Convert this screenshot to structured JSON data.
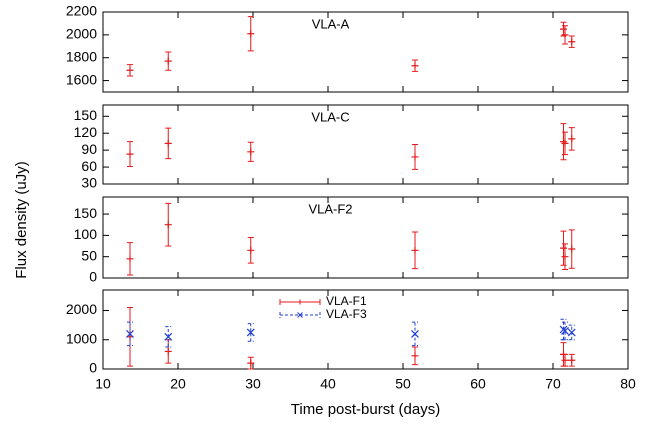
{
  "chart_data": [
    {
      "type": "errorbar",
      "annotation": "VLA-A",
      "x": [
        13.6,
        18.7,
        29.7,
        51.6,
        71.4,
        71.6,
        72.5
      ],
      "series": [
        {
          "color": "#e41a1c",
          "marker": "+",
          "values": [
            1690,
            1770,
            2010,
            1730,
            2050,
            2000,
            1940
          ],
          "errors": [
            50,
            80,
            150,
            50,
            60,
            80,
            50
          ]
        }
      ],
      "ylim": [
        1500,
        2200
      ],
      "yticks": [
        1600,
        1800,
        2000,
        2200
      ]
    },
    {
      "type": "errorbar",
      "annotation": "VLA-C",
      "x": [
        13.6,
        18.7,
        29.7,
        51.6,
        71.4,
        71.6,
        72.5
      ],
      "series": [
        {
          "color": "#e41a1c",
          "marker": "+",
          "values": [
            83,
            102,
            87,
            78,
            105,
            102,
            110
          ],
          "errors": [
            22,
            27,
            17,
            22,
            32,
            20,
            20
          ]
        }
      ],
      "ylim": [
        30,
        170
      ],
      "yticks": [
        30,
        60,
        90,
        120,
        150
      ]
    },
    {
      "type": "errorbar",
      "annotation": "VLA-F2",
      "x": [
        13.6,
        18.7,
        29.7,
        51.6,
        71.4,
        71.6,
        72.5
      ],
      "series": [
        {
          "color": "#e41a1c",
          "marker": "+",
          "values": [
            45,
            125,
            65,
            65,
            70,
            50,
            68
          ],
          "errors": [
            38,
            50,
            30,
            43,
            40,
            30,
            45
          ]
        }
      ],
      "ylim": [
        0,
        190
      ],
      "yticks": [
        0,
        50,
        100,
        150
      ]
    },
    {
      "type": "errorbar",
      "x_label": "Time post-burst (days)",
      "y_label": "Flux density (uJy)",
      "x": [
        13.6,
        18.7,
        29.7,
        51.6,
        71.4,
        71.6,
        72.5
      ],
      "series": [
        {
          "name": "VLA-F1",
          "color": "#e41a1c",
          "marker": "+",
          "values": [
            1100,
            600,
            200,
            450,
            500,
            300,
            300
          ],
          "errors": [
            1000,
            400,
            200,
            300,
            400,
            200,
            200
          ]
        },
        {
          "name": "VLA-F3",
          "color": "#1f3fd0",
          "marker": "x",
          "dashed": true,
          "values": [
            1200,
            1100,
            1250,
            1200,
            1350,
            1300,
            1250
          ],
          "errors": [
            400,
            350,
            300,
            400,
            350,
            300,
            250
          ]
        }
      ],
      "ylim": [
        0,
        2700
      ],
      "yticks": [
        0,
        1000,
        2000
      ],
      "xlim": [
        10,
        80
      ],
      "xticks": [
        10,
        20,
        30,
        40,
        50,
        60,
        70,
        80
      ],
      "legend": "top-center"
    }
  ]
}
